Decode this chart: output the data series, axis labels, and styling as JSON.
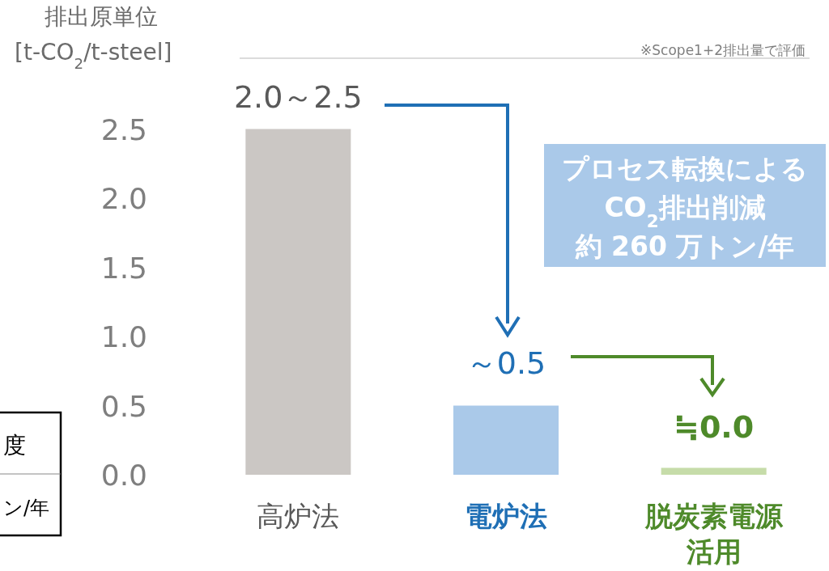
{
  "chart_data": {
    "type": "bar",
    "ylabel": "排出原単位\n[t-CO$_{2}$/t-steel]",
    "categories": [
      "高炉法",
      "電炉法",
      "脱炭素電源活用"
    ],
    "values": [
      2.5,
      0.5,
      0.05
    ],
    "colors": [
      "#cbc7c4",
      "#aac9e9",
      "#c6dca9"
    ],
    "value_labels": [
      "2.0～2.5",
      "～0.5",
      "≒0.0"
    ],
    "ylim": [
      0,
      3.0
    ],
    "yticks": [
      {
        "value": 0,
        "label": "0.0"
      },
      0.5,
      {
        "value": 1,
        "label": "1.0"
      },
      1.5,
      {
        "value": 2,
        "label": "2.0"
      },
      2.5
    ],
    "annotations": [
      "※Scope1+2排出量で評価",
      "プロセス転換による",
      "CO$_{2}$排出削減",
      "約 260 万トン/年",
      "度",
      "ン/年"
    ],
    "grid": false
  }
}
